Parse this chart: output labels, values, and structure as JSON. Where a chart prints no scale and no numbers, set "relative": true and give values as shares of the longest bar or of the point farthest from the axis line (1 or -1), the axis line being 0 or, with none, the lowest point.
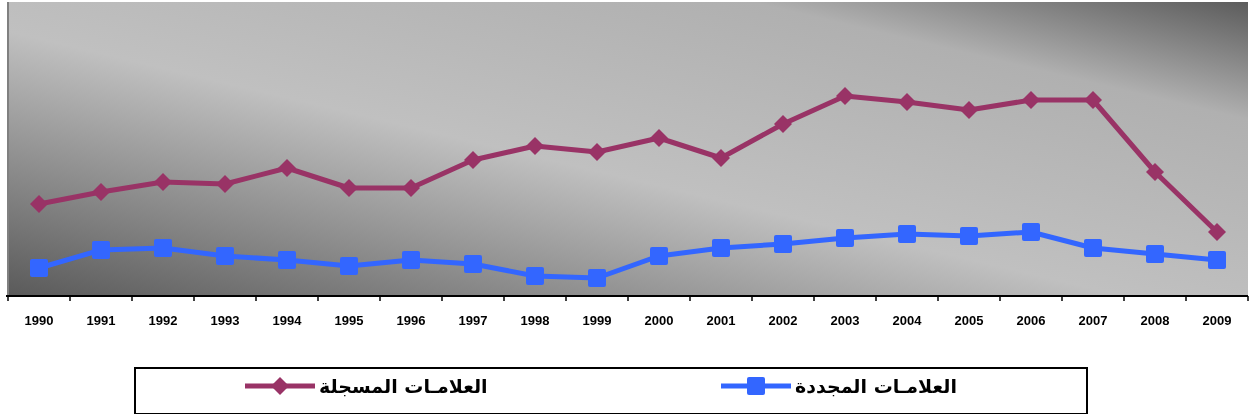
{
  "chart_data": {
    "type": "line",
    "relative": true,
    "legend": "bottom",
    "categories": [
      "1990",
      "1991",
      "1992",
      "1993",
      "1994",
      "1995",
      "1996",
      "1997",
      "1998",
      "1999",
      "2000",
      "2001",
      "2002",
      "2003",
      "2004",
      "2005",
      "2006",
      "2007",
      "2008",
      "2009"
    ],
    "series": [
      {
        "name": "العلامـات المسجلة",
        "color": "#993366",
        "marker": "diamond",
        "values": [
          0.46,
          0.52,
          0.57,
          0.56,
          0.64,
          0.54,
          0.54,
          0.68,
          0.75,
          0.72,
          0.79,
          0.69,
          0.86,
          1,
          0.97,
          0.93,
          0.98,
          0.98,
          0.62,
          0.32
        ]
      },
      {
        "name": "العلامـات المجددة",
        "color": "#3366ff",
        "marker": "square",
        "values": [
          0.14,
          0.23,
          0.24,
          0.2,
          0.18,
          0.15,
          0.18,
          0.16,
          0.1,
          0.09,
          0.2,
          0.24,
          0.26,
          0.29,
          0.31,
          0.3,
          0.32,
          0.24,
          0.21,
          0.18
        ]
      }
    ]
  }
}
